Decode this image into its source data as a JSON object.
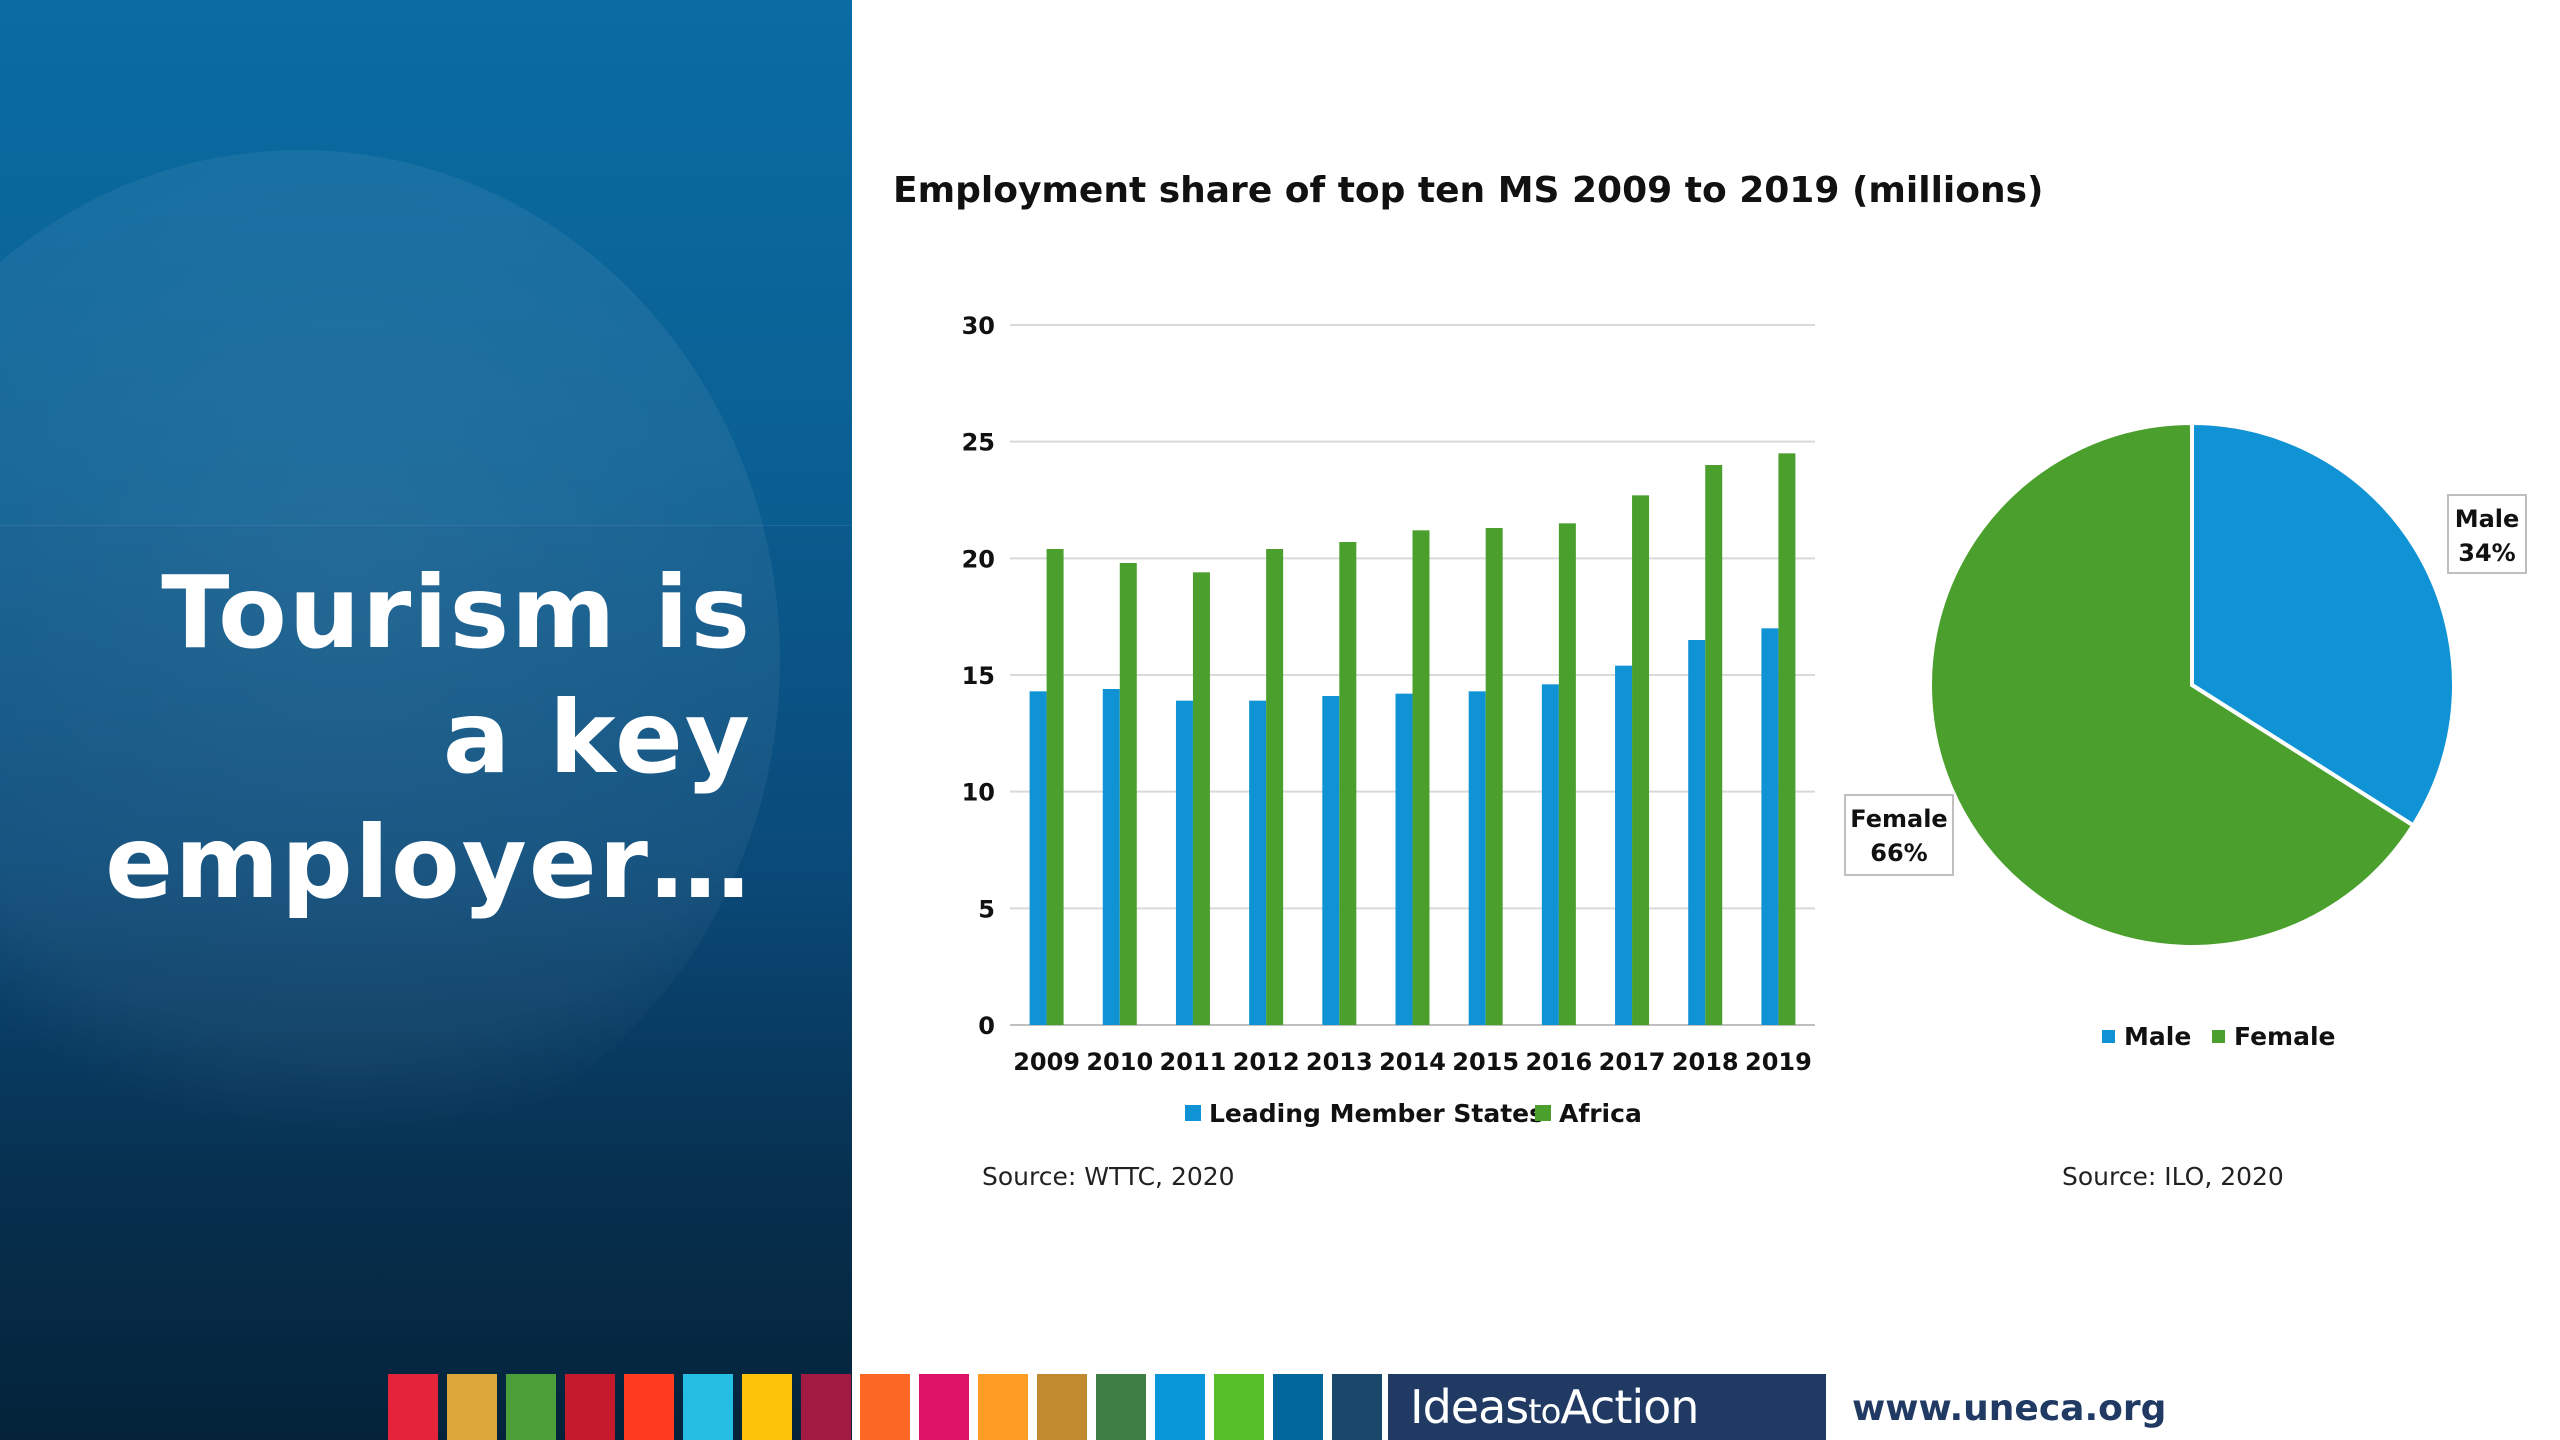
{
  "headline": [
    "Tourism is",
    "a key",
    "employer…"
  ],
  "bar_chart": {
    "source": "Source: WTTC, 2020"
  },
  "pie_chart": {
    "source": "Source: ILO, 2020"
  },
  "footer": {
    "ideas_part1": "Ideas",
    "ideas_part2": "to",
    "ideas_part3": "Action",
    "url": "www.uneca.org",
    "sdg_colors": [
      "#e5243b",
      "#dda63a",
      "#4c9f38",
      "#c5192d",
      "#ff3a21",
      "#26bde2",
      "#fcc30b",
      "#a21942",
      "#fd6925",
      "#dd1367",
      "#fd9d24",
      "#bf8b2e",
      "#3f7e44",
      "#0a97d9",
      "#56c02b",
      "#00689d",
      "#19486a"
    ]
  },
  "colors": {
    "blue": "#0f93d5",
    "green": "#4ba02d"
  },
  "chart_data": [
    {
      "type": "bar",
      "title": "Employment share of top ten MS 2009 to 2019 (millions)",
      "categories": [
        "2009",
        "2010",
        "2011",
        "2012",
        "2013",
        "2014",
        "2015",
        "2016",
        "2017",
        "2018",
        "2019"
      ],
      "series": [
        {
          "name": "Leading Member States",
          "values": [
            14.3,
            14.4,
            13.9,
            13.9,
            14.1,
            14.2,
            14.3,
            14.6,
            15.4,
            16.5,
            17.0
          ]
        },
        {
          "name": "Africa",
          "values": [
            20.4,
            19.8,
            19.4,
            20.4,
            20.7,
            21.2,
            21.3,
            21.5,
            22.7,
            24.0,
            24.5
          ]
        }
      ],
      "ylim": [
        0,
        30
      ],
      "yticks": [
        0,
        5,
        10,
        15,
        20,
        25,
        30
      ],
      "legend": "bottom",
      "grid": true
    },
    {
      "type": "pie",
      "slices": [
        {
          "name": "Male",
          "value": 34,
          "label": "34%"
        },
        {
          "name": "Female",
          "value": 66,
          "label": "66%"
        }
      ],
      "legend": "bottom"
    }
  ]
}
